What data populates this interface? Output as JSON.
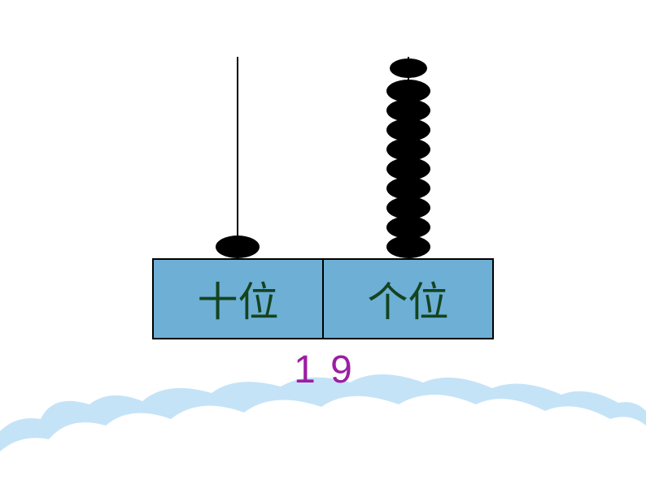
{
  "colors": {
    "label_box_bg": "#6eafd6",
    "label_box_border": "#000000",
    "label_text": "#14441e",
    "bead_color": "#000000",
    "rod_color": "#000000",
    "digit_color": "#9b1fa3",
    "cloud_back": "#c5e3f7",
    "cloud_front": "#ffffff",
    "page_bg": "#ffffff"
  },
  "abacus": {
    "columns": [
      {
        "label": "十位",
        "bead_count": 1,
        "top_bead": false
      },
      {
        "label": "个位",
        "bead_count": 9,
        "top_bead": true
      }
    ],
    "digits": [
      "1",
      "9"
    ],
    "rod_height": 248,
    "label_box_height": 100,
    "label_font_size": 50,
    "digit_font_size": 48,
    "bead_width": 54,
    "bead_height": 28
  }
}
